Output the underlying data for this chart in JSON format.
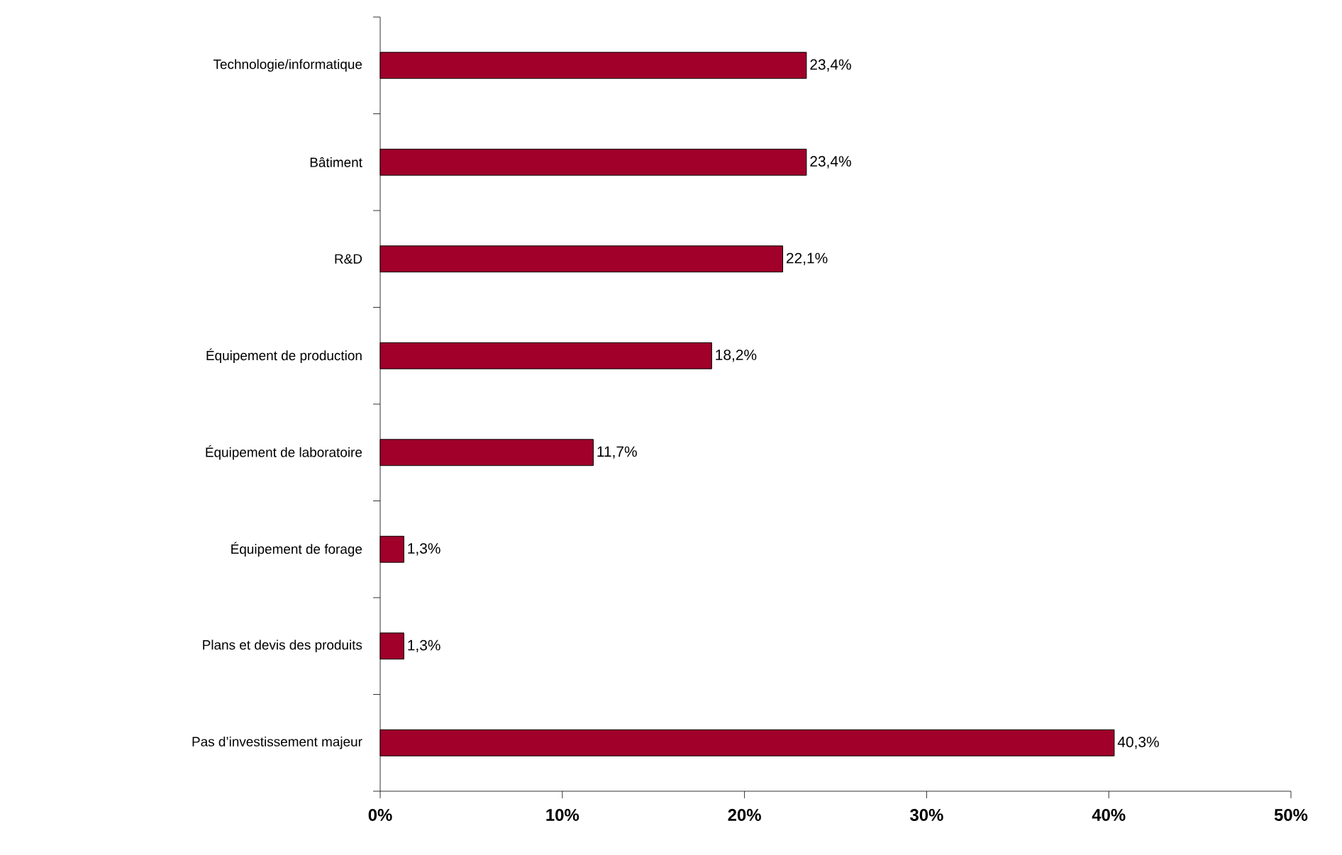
{
  "chart_data": {
    "type": "bar",
    "orientation": "horizontal",
    "categories": [
      "Technologie/informatique",
      "Bâtiment",
      "R&D",
      "Équipement de production",
      "Équipement de laboratoire",
      "Équipement de forage",
      "Plans et devis des produits",
      "Pas d’investissement majeur"
    ],
    "values": [
      23.4,
      23.4,
      22.1,
      18.2,
      11.7,
      1.3,
      1.3,
      40.3
    ],
    "value_labels": [
      "23,4%",
      "23,4%",
      "22,1%",
      "18,2%",
      "11,7%",
      "1,3%",
      "1,3%",
      "40,3%"
    ],
    "color": "#a0002a",
    "xlim": [
      0,
      50
    ],
    "xticks": [
      {
        "value": 0,
        "label": "0%"
      },
      {
        "value": 10,
        "label": "10%"
      },
      {
        "value": 20,
        "label": "20%"
      },
      {
        "value": 30,
        "label": "30%"
      },
      {
        "value": 40,
        "label": "40%"
      },
      {
        "value": 50,
        "label": "50%"
      }
    ]
  }
}
